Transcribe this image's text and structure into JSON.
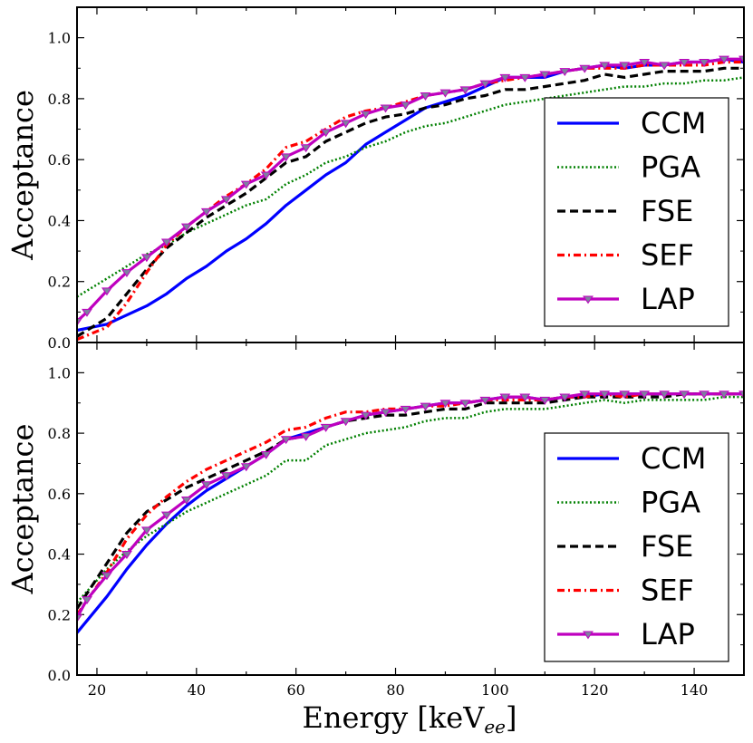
{
  "chart_data": [
    {
      "type": "line",
      "panel": "top",
      "title": "",
      "xlabel": "",
      "ylabel": "Acceptance",
      "xlim": [
        16,
        150
      ],
      "ylim": [
        0.0,
        1.1
      ],
      "yticks": [
        "0.0",
        "0.2",
        "0.4",
        "0.6",
        "0.8",
        "1.0"
      ],
      "xticks": [],
      "legend": "center-right",
      "series": [
        {
          "name": "CCM",
          "color": "#0000ff",
          "style": "solid",
          "x": [
            16,
            22,
            26,
            30,
            34,
            38,
            42,
            46,
            50,
            54,
            58,
            62,
            66,
            70,
            74,
            78,
            82,
            86,
            90,
            94,
            98,
            102,
            106,
            110,
            114,
            118,
            122,
            126,
            130,
            134,
            138,
            142,
            146,
            150
          ],
          "y": [
            0.04,
            0.06,
            0.09,
            0.12,
            0.16,
            0.21,
            0.25,
            0.3,
            0.34,
            0.39,
            0.45,
            0.5,
            0.55,
            0.59,
            0.65,
            0.69,
            0.73,
            0.77,
            0.79,
            0.81,
            0.84,
            0.87,
            0.87,
            0.87,
            0.89,
            0.9,
            0.91,
            0.9,
            0.91,
            0.91,
            0.92,
            0.92,
            0.93,
            0.92
          ]
        },
        {
          "name": "PGA",
          "color": "#008000",
          "style": "dotted",
          "x": [
            16,
            22,
            26,
            30,
            34,
            38,
            42,
            46,
            50,
            54,
            58,
            62,
            66,
            70,
            74,
            78,
            82,
            86,
            90,
            94,
            98,
            102,
            106,
            110,
            114,
            118,
            122,
            126,
            130,
            134,
            138,
            142,
            146,
            150
          ],
          "y": [
            0.15,
            0.21,
            0.25,
            0.29,
            0.32,
            0.36,
            0.39,
            0.42,
            0.45,
            0.47,
            0.52,
            0.55,
            0.59,
            0.61,
            0.64,
            0.66,
            0.69,
            0.71,
            0.72,
            0.74,
            0.76,
            0.78,
            0.79,
            0.8,
            0.81,
            0.82,
            0.83,
            0.84,
            0.84,
            0.85,
            0.85,
            0.86,
            0.86,
            0.87
          ]
        },
        {
          "name": "FSE",
          "color": "#000000",
          "style": "dashed",
          "x": [
            16,
            22,
            26,
            30,
            34,
            38,
            42,
            46,
            50,
            54,
            58,
            62,
            66,
            70,
            74,
            78,
            82,
            86,
            90,
            94,
            98,
            102,
            106,
            110,
            114,
            118,
            122,
            126,
            130,
            134,
            138,
            142,
            146,
            150
          ],
          "y": [
            0.02,
            0.08,
            0.16,
            0.24,
            0.31,
            0.36,
            0.41,
            0.45,
            0.49,
            0.54,
            0.59,
            0.61,
            0.66,
            0.69,
            0.72,
            0.74,
            0.75,
            0.77,
            0.78,
            0.8,
            0.81,
            0.83,
            0.83,
            0.84,
            0.85,
            0.86,
            0.88,
            0.87,
            0.88,
            0.89,
            0.89,
            0.89,
            0.9,
            0.9
          ]
        },
        {
          "name": "SEF",
          "color": "#ff0000",
          "style": "dashdot",
          "x": [
            16,
            22,
            26,
            30,
            34,
            38,
            42,
            46,
            50,
            54,
            58,
            62,
            66,
            70,
            74,
            78,
            82,
            86,
            90,
            94,
            98,
            102,
            106,
            110,
            114,
            118,
            122,
            126,
            130,
            134,
            138,
            142,
            146,
            150
          ],
          "y": [
            0.01,
            0.05,
            0.13,
            0.23,
            0.32,
            0.38,
            0.43,
            0.48,
            0.52,
            0.57,
            0.64,
            0.66,
            0.7,
            0.74,
            0.76,
            0.77,
            0.79,
            0.81,
            0.82,
            0.83,
            0.85,
            0.86,
            0.87,
            0.88,
            0.89,
            0.9,
            0.9,
            0.9,
            0.91,
            0.91,
            0.91,
            0.91,
            0.92,
            0.92
          ]
        },
        {
          "name": "LAP",
          "color": "#bf00bf",
          "style": "solid-triangle",
          "x": [
            16,
            18,
            22,
            26,
            30,
            34,
            38,
            42,
            46,
            50,
            54,
            58,
            62,
            66,
            70,
            74,
            78,
            82,
            86,
            90,
            94,
            98,
            102,
            106,
            110,
            114,
            118,
            122,
            126,
            130,
            134,
            138,
            142,
            146,
            150
          ],
          "y": [
            0.07,
            0.1,
            0.17,
            0.23,
            0.28,
            0.33,
            0.38,
            0.43,
            0.47,
            0.52,
            0.55,
            0.61,
            0.64,
            0.69,
            0.72,
            0.75,
            0.77,
            0.78,
            0.81,
            0.82,
            0.83,
            0.85,
            0.87,
            0.87,
            0.88,
            0.89,
            0.9,
            0.91,
            0.91,
            0.92,
            0.91,
            0.92,
            0.92,
            0.93,
            0.93
          ]
        }
      ]
    },
    {
      "type": "line",
      "panel": "bottom",
      "title": "",
      "xlabel": "Energy [keV",
      "xlabel_sub": "ee",
      "xlabel_end": "]",
      "ylabel": "Acceptance",
      "xlim": [
        16,
        150
      ],
      "ylim": [
        0.0,
        1.1
      ],
      "yticks": [
        "0.0",
        "0.2",
        "0.4",
        "0.6",
        "0.8",
        "1.0"
      ],
      "xticks": [
        "20",
        "40",
        "60",
        "80",
        "100",
        "120",
        "140"
      ],
      "legend": "lower-right",
      "series": [
        {
          "name": "CCM",
          "color": "#0000ff",
          "style": "solid",
          "x": [
            16,
            22,
            26,
            30,
            34,
            38,
            42,
            46,
            50,
            54,
            58,
            62,
            66,
            70,
            74,
            78,
            82,
            86,
            90,
            94,
            98,
            102,
            106,
            110,
            114,
            118,
            122,
            126,
            130,
            134,
            138,
            142,
            146,
            150
          ],
          "y": [
            0.14,
            0.26,
            0.35,
            0.43,
            0.5,
            0.56,
            0.61,
            0.65,
            0.69,
            0.73,
            0.78,
            0.8,
            0.82,
            0.84,
            0.86,
            0.87,
            0.88,
            0.89,
            0.9,
            0.9,
            0.91,
            0.92,
            0.92,
            0.91,
            0.92,
            0.92,
            0.93,
            0.93,
            0.93,
            0.93,
            0.93,
            0.93,
            0.93,
            0.93
          ]
        },
        {
          "name": "PGA",
          "color": "#008000",
          "style": "dotted",
          "x": [
            16,
            22,
            26,
            30,
            34,
            38,
            42,
            46,
            50,
            54,
            58,
            62,
            66,
            70,
            74,
            78,
            82,
            86,
            90,
            94,
            98,
            102,
            106,
            110,
            114,
            118,
            122,
            126,
            130,
            134,
            138,
            142,
            146,
            150
          ],
          "y": [
            0.24,
            0.35,
            0.41,
            0.46,
            0.5,
            0.54,
            0.57,
            0.6,
            0.63,
            0.66,
            0.71,
            0.71,
            0.76,
            0.78,
            0.8,
            0.81,
            0.82,
            0.84,
            0.85,
            0.85,
            0.87,
            0.88,
            0.88,
            0.88,
            0.89,
            0.9,
            0.91,
            0.9,
            0.91,
            0.91,
            0.91,
            0.91,
            0.92,
            0.92
          ]
        },
        {
          "name": "FSE",
          "color": "#000000",
          "style": "dashed",
          "x": [
            16,
            22,
            26,
            30,
            34,
            38,
            42,
            46,
            50,
            54,
            58,
            62,
            66,
            70,
            74,
            78,
            82,
            86,
            90,
            94,
            98,
            102,
            106,
            110,
            114,
            118,
            122,
            126,
            130,
            134,
            138,
            142,
            146,
            150
          ],
          "y": [
            0.22,
            0.37,
            0.47,
            0.54,
            0.58,
            0.62,
            0.65,
            0.68,
            0.71,
            0.74,
            0.78,
            0.79,
            0.82,
            0.84,
            0.85,
            0.86,
            0.86,
            0.87,
            0.88,
            0.88,
            0.9,
            0.9,
            0.9,
            0.9,
            0.91,
            0.92,
            0.92,
            0.92,
            0.92,
            0.92,
            0.93,
            0.93,
            0.93,
            0.93
          ]
        },
        {
          "name": "SEF",
          "color": "#ff0000",
          "style": "dashdot",
          "x": [
            16,
            22,
            26,
            30,
            34,
            38,
            42,
            46,
            50,
            54,
            58,
            62,
            66,
            70,
            74,
            78,
            82,
            86,
            90,
            94,
            98,
            102,
            106,
            110,
            114,
            118,
            122,
            126,
            130,
            134,
            138,
            142,
            146,
            150
          ],
          "y": [
            0.2,
            0.34,
            0.45,
            0.53,
            0.59,
            0.64,
            0.68,
            0.71,
            0.74,
            0.77,
            0.81,
            0.82,
            0.85,
            0.87,
            0.87,
            0.88,
            0.88,
            0.89,
            0.89,
            0.9,
            0.91,
            0.91,
            0.91,
            0.91,
            0.92,
            0.92,
            0.93,
            0.92,
            0.93,
            0.93,
            0.93,
            0.93,
            0.93,
            0.93
          ]
        },
        {
          "name": "LAP",
          "color": "#bf00bf",
          "style": "solid-triangle",
          "x": [
            16,
            18,
            22,
            26,
            30,
            34,
            38,
            42,
            46,
            50,
            54,
            58,
            62,
            66,
            70,
            74,
            78,
            82,
            86,
            90,
            94,
            98,
            102,
            106,
            110,
            114,
            118,
            122,
            126,
            130,
            134,
            138,
            142,
            146,
            150
          ],
          "y": [
            0.19,
            0.25,
            0.33,
            0.4,
            0.48,
            0.53,
            0.58,
            0.63,
            0.66,
            0.69,
            0.73,
            0.78,
            0.79,
            0.82,
            0.84,
            0.86,
            0.87,
            0.88,
            0.89,
            0.9,
            0.9,
            0.91,
            0.92,
            0.92,
            0.91,
            0.92,
            0.93,
            0.93,
            0.93,
            0.93,
            0.93,
            0.93,
            0.93,
            0.93,
            0.93
          ]
        }
      ]
    }
  ]
}
